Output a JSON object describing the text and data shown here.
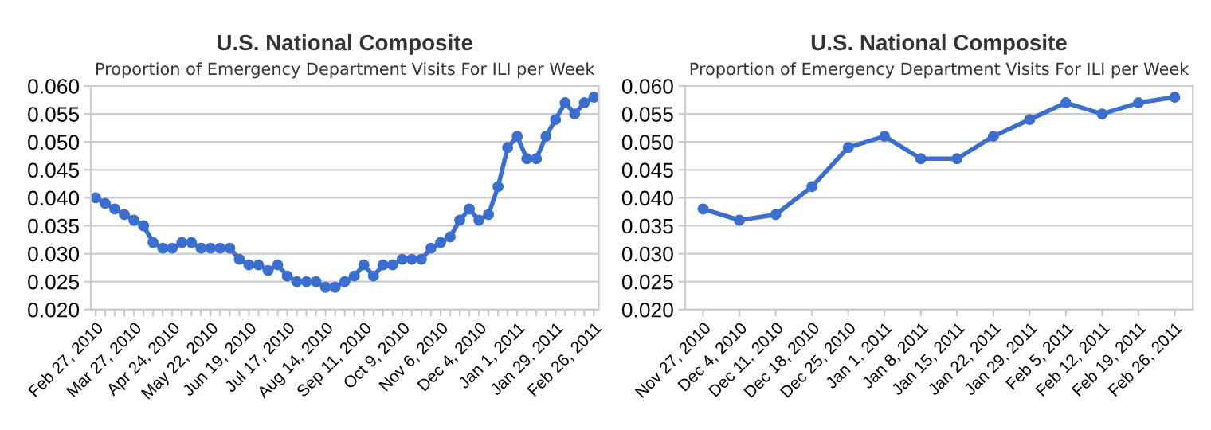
{
  "chart_data": [
    {
      "type": "line",
      "title": "U.S. National Composite",
      "subtitle": "Proportion of Emergency Department Visits For ILI per Week",
      "categories": [
        "Feb 27, 2010",
        null,
        null,
        null,
        "Mar 27, 2010",
        null,
        null,
        null,
        "Apr 24, 2010",
        null,
        null,
        null,
        "May 22, 2010",
        null,
        null,
        null,
        "Jun 19, 2010",
        null,
        null,
        null,
        "Jul 17, 2010",
        null,
        null,
        null,
        "Aug 14, 2010",
        null,
        null,
        null,
        "Sep 11, 2010",
        null,
        null,
        null,
        "Oct 9, 2010",
        null,
        null,
        null,
        "Nov 6, 2010",
        null,
        null,
        null,
        "Dec 4, 2010",
        null,
        null,
        null,
        "Jan 1, 2011",
        null,
        null,
        null,
        "Jan 29, 2011",
        null,
        null,
        null,
        "Feb 26, 2011"
      ],
      "series": [
        {
          "color": "#3a6fd0",
          "values": [
            0.04,
            0.039,
            0.038,
            0.037,
            0.036,
            0.035,
            0.032,
            0.031,
            0.031,
            0.032,
            0.032,
            0.031,
            0.031,
            0.031,
            0.031,
            0.029,
            0.028,
            0.028,
            0.027,
            0.028,
            0.026,
            0.025,
            0.025,
            0.025,
            0.024,
            0.024,
            0.025,
            0.026,
            0.028,
            0.026,
            0.028,
            0.028,
            0.029,
            0.029,
            0.029,
            0.031,
            0.032,
            0.033,
            0.036,
            0.038,
            0.036,
            0.037,
            0.042,
            0.049,
            0.051,
            0.047,
            0.047,
            0.051,
            0.054,
            0.057,
            0.055,
            0.057,
            0.058
          ]
        }
      ],
      "ylim": [
        0.02,
        0.06
      ],
      "yticks": [
        {
          "value": 0.02,
          "label": "0.020"
        },
        {
          "value": 0.025,
          "label": "0.025"
        },
        {
          "value": 0.03,
          "label": "0.030"
        },
        {
          "value": 0.035,
          "label": "0.035"
        },
        {
          "value": 0.04,
          "label": "0.040"
        },
        {
          "value": 0.045,
          "label": "0.045"
        },
        {
          "value": 0.05,
          "label": "0.050"
        },
        {
          "value": 0.055,
          "label": "0.055"
        },
        {
          "value": 0.06,
          "label": "0.060"
        }
      ],
      "grid": "y",
      "marker": "circle",
      "line_style": "solid",
      "legend": false
    },
    {
      "type": "line",
      "title": "U.S. National Composite",
      "subtitle": "Proportion of Emergency Department Visits For ILI per Week",
      "categories": [
        "Nov 27, 2010",
        "Dec 4, 2010",
        "Dec 11, 2010",
        "Dec 18, 2010",
        "Dec 25, 2010",
        "Jan 1, 2011",
        "Jan 8, 2011",
        "Jan 15, 2011",
        "Jan 22, 2011",
        "Jan 29, 2011",
        "Feb 5, 2011",
        "Feb 12, 2011",
        "Feb 19, 2011",
        "Feb 26, 2011"
      ],
      "series": [
        {
          "color": "#3a6fd0",
          "values": [
            0.038,
            0.036,
            0.037,
            0.042,
            0.049,
            0.051,
            0.047,
            0.047,
            0.051,
            0.054,
            0.057,
            0.055,
            0.057,
            0.058
          ]
        }
      ],
      "ylim": [
        0.02,
        0.06
      ],
      "yticks": [
        {
          "value": 0.02,
          "label": "0.020"
        },
        {
          "value": 0.025,
          "label": "0.025"
        },
        {
          "value": 0.03,
          "label": "0.030"
        },
        {
          "value": 0.035,
          "label": "0.035"
        },
        {
          "value": 0.04,
          "label": "0.040"
        },
        {
          "value": 0.045,
          "label": "0.045"
        },
        {
          "value": 0.05,
          "label": "0.050"
        },
        {
          "value": 0.055,
          "label": "0.055"
        },
        {
          "value": 0.06,
          "label": "0.060"
        }
      ],
      "grid": "y",
      "marker": "circle",
      "line_style": "solid",
      "legend": false
    }
  ]
}
